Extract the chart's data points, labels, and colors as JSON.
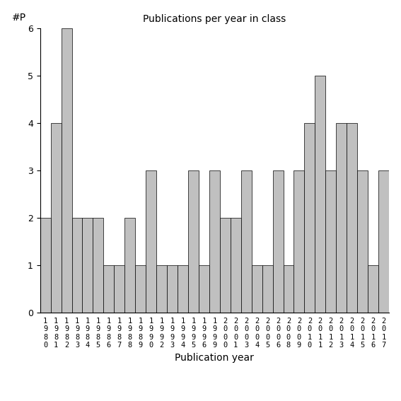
{
  "title": "Publications per year in class",
  "xlabel": "Publication year",
  "ylabel": "#P",
  "bar_color": "#c0c0c0",
  "edge_color": "#000000",
  "ylim": [
    0,
    6
  ],
  "yticks": [
    0,
    1,
    2,
    3,
    4,
    5,
    6
  ],
  "categories": [
    "1980",
    "1981",
    "1982",
    "1983",
    "1984",
    "1985",
    "1986",
    "1987",
    "1988",
    "1989",
    "1990",
    "1992",
    "1993",
    "1994",
    "1995",
    "1996",
    "1999",
    "2000",
    "2001",
    "2003",
    "2004",
    "2005",
    "2006",
    "2008",
    "2009",
    "2010",
    "2011",
    "2012",
    "2013",
    "2014",
    "2015",
    "2016",
    "2017"
  ],
  "values": [
    2,
    4,
    6,
    2,
    2,
    2,
    1,
    1,
    2,
    1,
    3,
    1,
    1,
    1,
    3,
    1,
    3,
    2,
    2,
    3,
    1,
    1,
    3,
    1,
    3,
    4,
    5,
    3,
    4,
    4,
    3,
    1,
    3
  ],
  "figsize": [
    5.67,
    5.67
  ],
  "dpi": 100
}
